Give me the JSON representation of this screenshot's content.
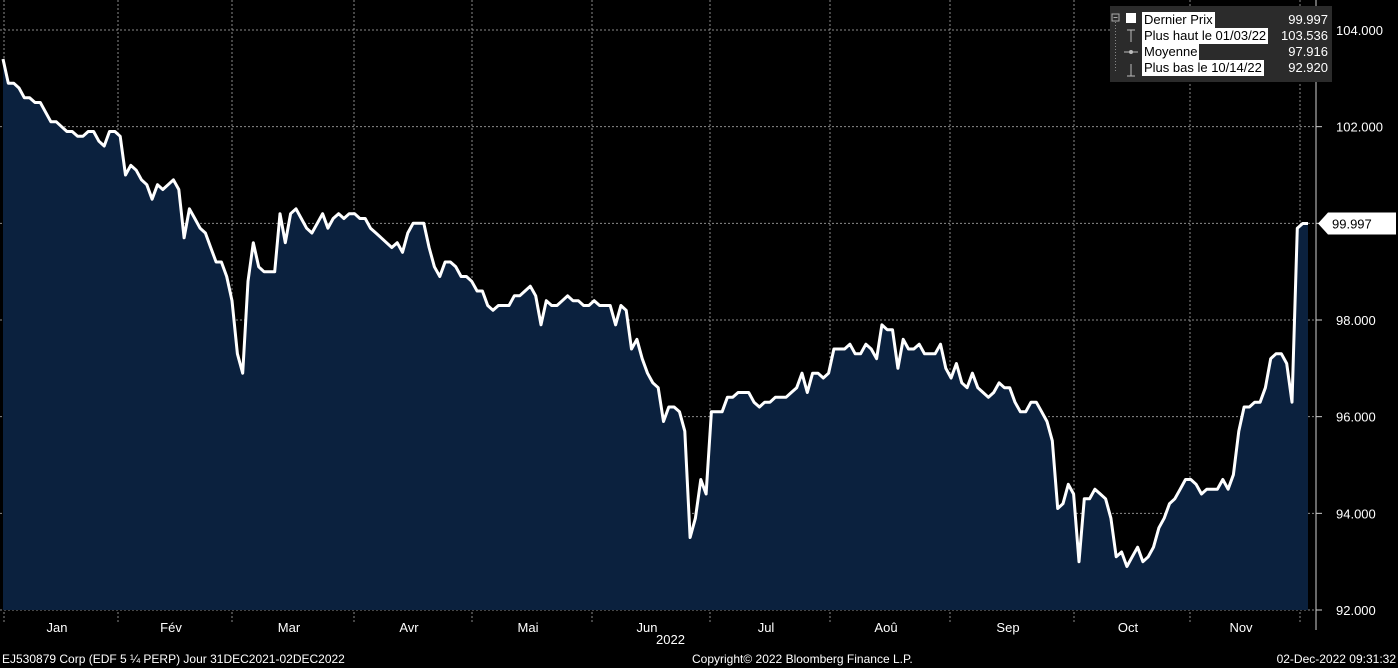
{
  "chart_data": {
    "type": "area",
    "title": "",
    "xlabel": "2022",
    "ylabel": "",
    "ylim": [
      92.0,
      104.0
    ],
    "y_ticks": [
      "92.000",
      "94.000",
      "96.000",
      "98.000",
      "100.000",
      "102.000",
      "104.000"
    ],
    "month_labels": [
      "Jan",
      "Fév",
      "Mar",
      "Avr",
      "Mai",
      "Jun",
      "Jul",
      "Aoû",
      "Sep",
      "Oct",
      "Nov"
    ],
    "grid": true,
    "legend_position": "top-right",
    "last_value_label": "99.997",
    "series": [
      {
        "name": "Dernier Prix",
        "color": "#ffffff",
        "fill": "#0b213e",
        "values": [
          103.4,
          102.9,
          102.9,
          102.8,
          102.6,
          102.6,
          102.5,
          102.5,
          102.3,
          102.1,
          102.1,
          102.0,
          101.9,
          101.9,
          101.8,
          101.8,
          101.9,
          101.9,
          101.7,
          101.6,
          101.9,
          101.9,
          101.8,
          101.0,
          101.2,
          101.1,
          100.9,
          100.8,
          100.5,
          100.8,
          100.7,
          100.8,
          100.9,
          100.7,
          99.7,
          100.3,
          100.1,
          99.9,
          99.8,
          99.5,
          99.2,
          99.2,
          98.9,
          98.4,
          97.3,
          96.9,
          98.8,
          99.6,
          99.1,
          99.0,
          99.0,
          99.0,
          100.2,
          99.6,
          100.2,
          100.3,
          100.1,
          99.9,
          99.8,
          100.0,
          100.2,
          99.9,
          100.1,
          100.2,
          100.1,
          100.2,
          100.2,
          100.1,
          100.1,
          99.9,
          99.8,
          99.7,
          99.6,
          99.5,
          99.6,
          99.4,
          99.8,
          100.0,
          100.0,
          100.0,
          99.5,
          99.1,
          98.9,
          99.2,
          99.2,
          99.1,
          98.9,
          98.9,
          98.8,
          98.6,
          98.6,
          98.3,
          98.2,
          98.3,
          98.3,
          98.3,
          98.5,
          98.5,
          98.6,
          98.7,
          98.5,
          97.9,
          98.4,
          98.3,
          98.3,
          98.4,
          98.5,
          98.4,
          98.4,
          98.3,
          98.3,
          98.4,
          98.3,
          98.3,
          98.3,
          97.9,
          98.3,
          98.2,
          97.4,
          97.6,
          97.2,
          96.9,
          96.7,
          96.6,
          95.9,
          96.2,
          96.2,
          96.1,
          95.7,
          93.5,
          93.9,
          94.7,
          94.4,
          96.1,
          96.1,
          96.1,
          96.4,
          96.4,
          96.5,
          96.5,
          96.5,
          96.3,
          96.2,
          96.3,
          96.3,
          96.4,
          96.4,
          96.4,
          96.5,
          96.6,
          96.9,
          96.5,
          96.9,
          96.9,
          96.8,
          96.9,
          97.4,
          97.4,
          97.4,
          97.5,
          97.3,
          97.3,
          97.5,
          97.4,
          97.2,
          97.9,
          97.8,
          97.8,
          97.0,
          97.6,
          97.4,
          97.4,
          97.5,
          97.3,
          97.3,
          97.3,
          97.5,
          97.0,
          96.8,
          97.1,
          96.7,
          96.6,
          96.9,
          96.6,
          96.5,
          96.4,
          96.5,
          96.7,
          96.6,
          96.6,
          96.3,
          96.1,
          96.1,
          96.3,
          96.3,
          96.1,
          95.9,
          95.5,
          94.1,
          94.2,
          94.6,
          94.4,
          93.0,
          94.3,
          94.3,
          94.5,
          94.4,
          94.3,
          93.9,
          93.1,
          93.2,
          92.9,
          93.1,
          93.3,
          93.0,
          93.1,
          93.3,
          93.7,
          93.9,
          94.2,
          94.3,
          94.5,
          94.7,
          94.7,
          94.6,
          94.4,
          94.5,
          94.5,
          94.5,
          94.7,
          94.5,
          94.8,
          95.7,
          96.2,
          96.2,
          96.3,
          96.3,
          96.6,
          97.2,
          97.3,
          97.3,
          97.1,
          96.3,
          99.9,
          99.997,
          99.997
        ]
      }
    ]
  },
  "legend": [
    {
      "label": "Dernier Prix",
      "value": "99.997"
    },
    {
      "label": "Plus haut le 01/03/22",
      "value": "103.536"
    },
    {
      "label": "Moyenne",
      "value": "97.916"
    },
    {
      "label": "Plus bas le 10/14/22",
      "value": "92.920"
    }
  ],
  "footer": {
    "left": "EJ530879 Corp (EDF 5 ¼ PERP) Jour 31DEC2021-02DEC2022",
    "center": "Copyright© 2022 Bloomberg Finance L.P.",
    "right": "02-Dec-2022 09:31:32"
  },
  "colors": {
    "background": "#000000",
    "area_fill": "#0b213e",
    "line": "#ffffff",
    "grid": "#8a8a8a",
    "legend_bg": "#2b2b2b"
  }
}
